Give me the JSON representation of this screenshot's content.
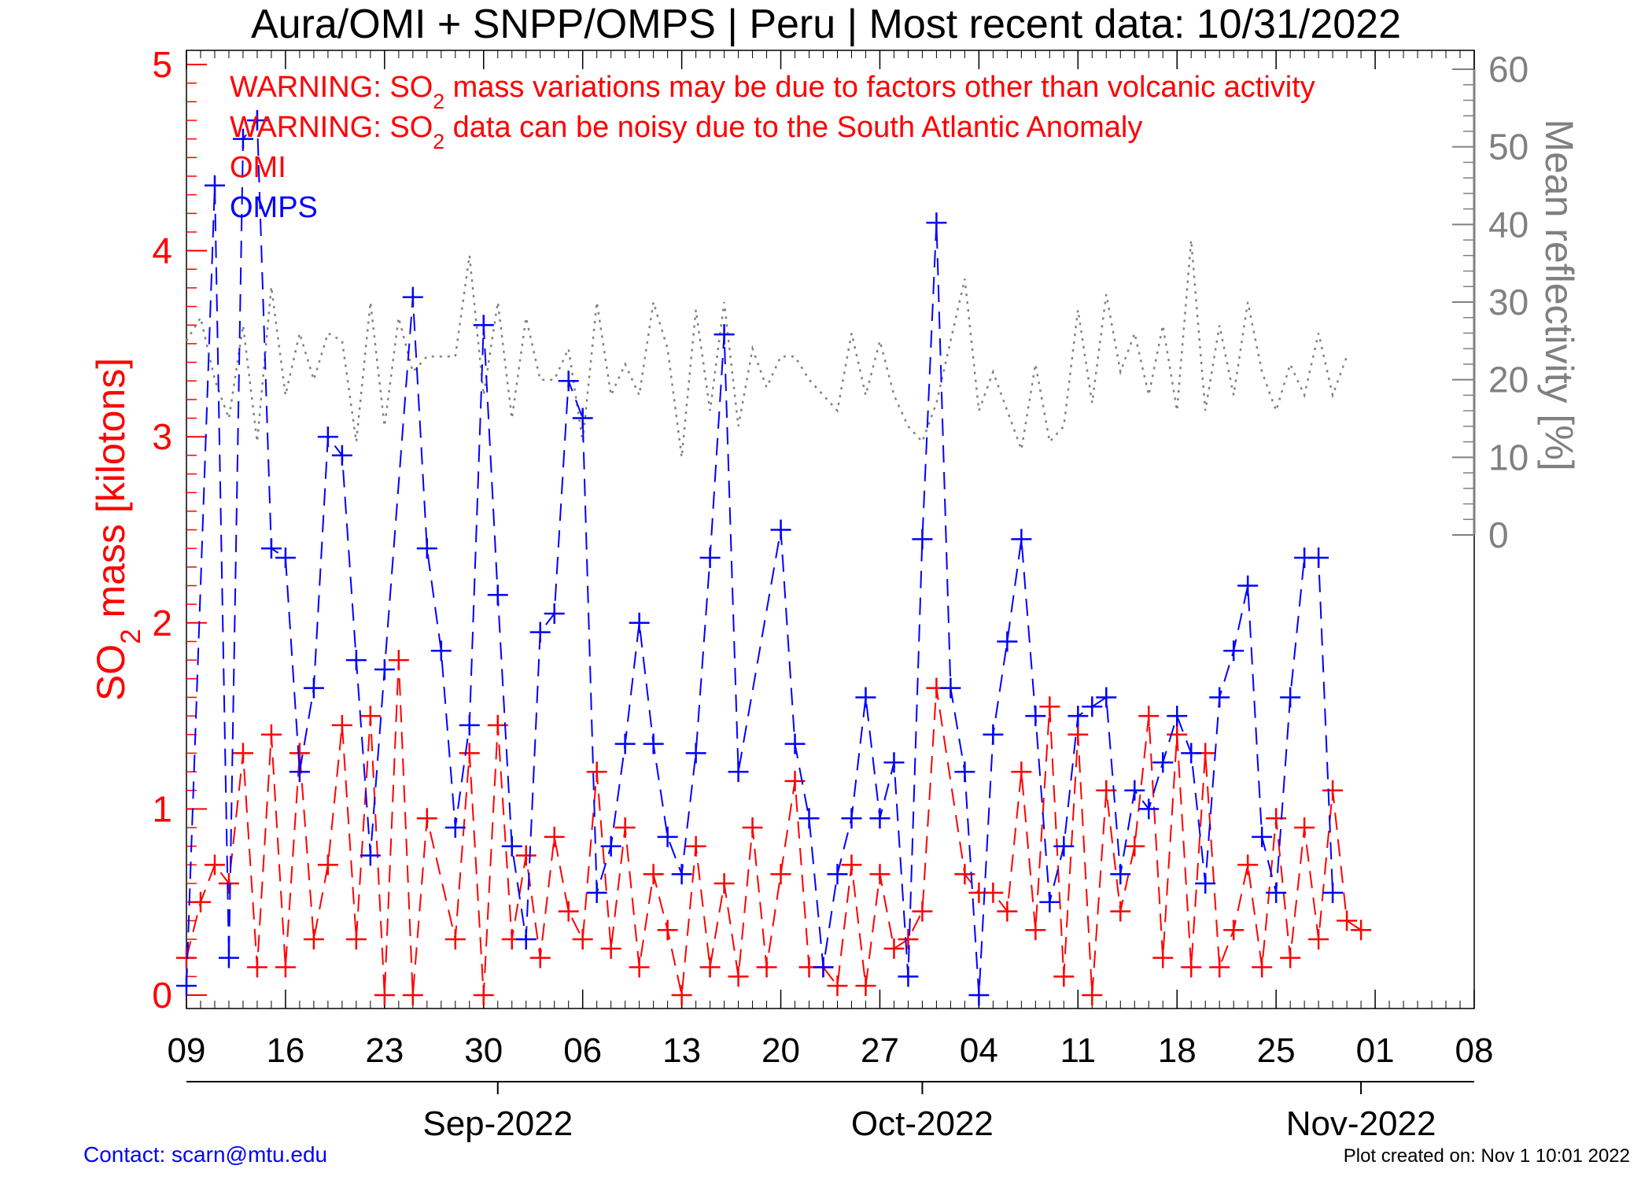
{
  "chart_data": {
    "type": "line",
    "title": "Aura/OMI + SNPP/OMPS | Peru | Most recent data: 10/31/2022",
    "warnings": [
      {
        "pre": "WARNING: SO",
        "sub": "2",
        "post": " mass variations may be due to factors other than volcanic activity"
      },
      {
        "pre": "WARNING: SO",
        "sub": "2",
        "post": " data can be noisy due to the South Atlantic Anomaly"
      }
    ],
    "ylabel_left": {
      "pre": "SO",
      "sub": "2",
      "post": " mass [kilotons]"
    },
    "ylabel_right": "Mean reflectivity [%]",
    "x_range": [
      "2022-08-09",
      "2022-11-08"
    ],
    "ylim_left": [
      0,
      5
    ],
    "ylim_right": [
      0,
      60
    ],
    "x_ticks": [
      {
        "date": "2022-08-09",
        "label": "09"
      },
      {
        "date": "2022-08-16",
        "label": "16"
      },
      {
        "date": "2022-08-23",
        "label": "23"
      },
      {
        "date": "2022-08-30",
        "label": "30"
      },
      {
        "date": "2022-09-06",
        "label": "06"
      },
      {
        "date": "2022-09-13",
        "label": "13"
      },
      {
        "date": "2022-09-20",
        "label": "20"
      },
      {
        "date": "2022-09-27",
        "label": "27"
      },
      {
        "date": "2022-10-04",
        "label": "04"
      },
      {
        "date": "2022-10-11",
        "label": "11"
      },
      {
        "date": "2022-10-18",
        "label": "18"
      },
      {
        "date": "2022-10-25",
        "label": "25"
      },
      {
        "date": "2022-11-01",
        "label": "01"
      },
      {
        "date": "2022-11-08",
        "label": "08"
      }
    ],
    "y_ticks_left": [
      0,
      1,
      2,
      3,
      4,
      5
    ],
    "y_ticks_right": [
      0,
      10,
      20,
      30,
      40,
      50,
      60
    ],
    "months": [
      {
        "date": "2022-08-31",
        "label": "Sep-2022"
      },
      {
        "date": "2022-09-30",
        "label": "Oct-2022"
      },
      {
        "date": "2022-10-31",
        "label": "Nov-2022"
      }
    ],
    "series": [
      {
        "name": "OMI",
        "axis": "left",
        "color": "#ff0000",
        "marker": "plus",
        "line": "dashed",
        "points": [
          [
            "2022-08-09",
            0.2
          ],
          [
            "2022-08-10",
            0.5
          ],
          [
            "2022-08-11",
            0.7
          ],
          [
            "2022-08-12",
            0.6
          ],
          [
            "2022-08-13",
            1.3
          ],
          [
            "2022-08-14",
            0.15
          ],
          [
            "2022-08-15",
            1.4
          ],
          [
            "2022-08-16",
            0.15
          ],
          [
            "2022-08-17",
            1.3
          ],
          [
            "2022-08-18",
            0.3
          ],
          [
            "2022-08-19",
            0.7
          ],
          [
            "2022-08-20",
            1.45
          ],
          [
            "2022-08-21",
            0.3
          ],
          [
            "2022-08-22",
            1.5
          ],
          [
            "2022-08-23",
            0.0
          ],
          [
            "2022-08-24",
            1.8
          ],
          [
            "2022-08-25",
            0.0
          ],
          [
            "2022-08-26",
            0.95
          ],
          [
            "2022-08-28",
            0.3
          ],
          [
            "2022-08-29",
            1.3
          ],
          [
            "2022-08-30",
            0.0
          ],
          [
            "2022-08-31",
            1.45
          ],
          [
            "2022-09-01",
            0.3
          ],
          [
            "2022-09-02",
            0.75
          ],
          [
            "2022-09-03",
            0.2
          ],
          [
            "2022-09-04",
            0.85
          ],
          [
            "2022-09-05",
            0.45
          ],
          [
            "2022-09-06",
            0.3
          ],
          [
            "2022-09-07",
            1.2
          ],
          [
            "2022-09-08",
            0.25
          ],
          [
            "2022-09-09",
            0.9
          ],
          [
            "2022-09-10",
            0.15
          ],
          [
            "2022-09-11",
            0.65
          ],
          [
            "2022-09-12",
            0.35
          ],
          [
            "2022-09-13",
            0.0
          ],
          [
            "2022-09-14",
            0.8
          ],
          [
            "2022-09-15",
            0.15
          ],
          [
            "2022-09-16",
            0.6
          ],
          [
            "2022-09-17",
            0.1
          ],
          [
            "2022-09-18",
            0.9
          ],
          [
            "2022-09-19",
            0.15
          ],
          [
            "2022-09-20",
            0.65
          ],
          [
            "2022-09-21",
            1.15
          ],
          [
            "2022-09-22",
            0.15
          ],
          [
            "2022-09-23",
            0.15
          ],
          [
            "2022-09-24",
            0.05
          ],
          [
            "2022-09-25",
            0.7
          ],
          [
            "2022-09-26",
            0.05
          ],
          [
            "2022-09-27",
            0.65
          ],
          [
            "2022-09-28",
            0.25
          ],
          [
            "2022-09-29",
            0.3
          ],
          [
            "2022-09-30",
            0.45
          ],
          [
            "2022-10-01",
            1.65
          ],
          [
            "2022-10-03",
            0.65
          ],
          [
            "2022-10-04",
            0.55
          ],
          [
            "2022-10-05",
            0.55
          ],
          [
            "2022-10-06",
            0.45
          ],
          [
            "2022-10-07",
            1.2
          ],
          [
            "2022-10-08",
            0.35
          ],
          [
            "2022-10-09",
            1.55
          ],
          [
            "2022-10-10",
            0.1
          ],
          [
            "2022-10-11",
            1.4
          ],
          [
            "2022-10-12",
            0.0
          ],
          [
            "2022-10-13",
            1.1
          ],
          [
            "2022-10-14",
            0.45
          ],
          [
            "2022-10-15",
            0.8
          ],
          [
            "2022-10-16",
            1.5
          ],
          [
            "2022-10-17",
            0.2
          ],
          [
            "2022-10-18",
            1.4
          ],
          [
            "2022-10-19",
            0.15
          ],
          [
            "2022-10-20",
            1.3
          ],
          [
            "2022-10-21",
            0.15
          ],
          [
            "2022-10-22",
            0.35
          ],
          [
            "2022-10-23",
            0.7
          ],
          [
            "2022-10-24",
            0.15
          ],
          [
            "2022-10-25",
            0.95
          ],
          [
            "2022-10-26",
            0.2
          ],
          [
            "2022-10-27",
            0.9
          ],
          [
            "2022-10-28",
            0.3
          ],
          [
            "2022-10-29",
            1.1
          ],
          [
            "2022-10-30",
            0.4
          ],
          [
            "2022-10-31",
            0.35
          ]
        ]
      },
      {
        "name": "OMPS",
        "axis": "left",
        "color": "#0000ff",
        "marker": "plus",
        "line": "dashed",
        "points": [
          [
            "2022-08-09",
            0.05
          ],
          [
            "2022-08-11",
            4.35
          ],
          [
            "2022-08-12",
            0.2
          ],
          [
            "2022-08-13",
            4.6
          ],
          [
            "2022-08-14",
            4.7
          ],
          [
            "2022-08-15",
            2.4
          ],
          [
            "2022-08-16",
            2.35
          ],
          [
            "2022-08-17",
            1.2
          ],
          [
            "2022-08-18",
            1.65
          ],
          [
            "2022-08-19",
            3.0
          ],
          [
            "2022-08-20",
            2.9
          ],
          [
            "2022-08-21",
            1.8
          ],
          [
            "2022-08-22",
            0.75
          ],
          [
            "2022-08-23",
            1.75
          ],
          [
            "2022-08-25",
            3.75
          ],
          [
            "2022-08-26",
            2.4
          ],
          [
            "2022-08-27",
            1.85
          ],
          [
            "2022-08-28",
            0.9
          ],
          [
            "2022-08-29",
            1.45
          ],
          [
            "2022-08-30",
            3.6
          ],
          [
            "2022-08-31",
            2.15
          ],
          [
            "2022-09-01",
            0.8
          ],
          [
            "2022-09-02",
            0.3
          ],
          [
            "2022-09-03",
            1.95
          ],
          [
            "2022-09-04",
            2.05
          ],
          [
            "2022-09-05",
            3.3
          ],
          [
            "2022-09-06",
            3.1
          ],
          [
            "2022-09-07",
            0.55
          ],
          [
            "2022-09-08",
            0.8
          ],
          [
            "2022-09-09",
            1.35
          ],
          [
            "2022-09-10",
            2.0
          ],
          [
            "2022-09-11",
            1.35
          ],
          [
            "2022-09-12",
            0.85
          ],
          [
            "2022-09-13",
            0.65
          ],
          [
            "2022-09-14",
            1.3
          ],
          [
            "2022-09-15",
            2.35
          ],
          [
            "2022-09-16",
            3.55
          ],
          [
            "2022-09-17",
            1.2
          ],
          [
            "2022-09-20",
            2.5
          ],
          [
            "2022-09-21",
            1.35
          ],
          [
            "2022-09-22",
            0.95
          ],
          [
            "2022-09-23",
            0.15
          ],
          [
            "2022-09-24",
            0.65
          ],
          [
            "2022-09-25",
            0.95
          ],
          [
            "2022-09-26",
            1.6
          ],
          [
            "2022-09-27",
            0.95
          ],
          [
            "2022-09-28",
            1.25
          ],
          [
            "2022-09-29",
            0.1
          ],
          [
            "2022-09-30",
            2.45
          ],
          [
            "2022-10-01",
            4.15
          ],
          [
            "2022-10-02",
            1.65
          ],
          [
            "2022-10-03",
            1.2
          ],
          [
            "2022-10-04",
            0.0
          ],
          [
            "2022-10-05",
            1.4
          ],
          [
            "2022-10-06",
            1.9
          ],
          [
            "2022-10-07",
            2.45
          ],
          [
            "2022-10-08",
            1.5
          ],
          [
            "2022-10-09",
            0.5
          ],
          [
            "2022-10-10",
            0.8
          ],
          [
            "2022-10-11",
            1.5
          ],
          [
            "2022-10-12",
            1.55
          ],
          [
            "2022-10-13",
            1.6
          ],
          [
            "2022-10-14",
            0.65
          ],
          [
            "2022-10-15",
            1.1
          ],
          [
            "2022-10-16",
            1.0
          ],
          [
            "2022-10-17",
            1.25
          ],
          [
            "2022-10-18",
            1.5
          ],
          [
            "2022-10-19",
            1.3
          ],
          [
            "2022-10-20",
            0.6
          ],
          [
            "2022-10-21",
            1.6
          ],
          [
            "2022-10-22",
            1.85
          ],
          [
            "2022-10-23",
            2.2
          ],
          [
            "2022-10-24",
            0.85
          ],
          [
            "2022-10-25",
            0.55
          ],
          [
            "2022-10-26",
            1.6
          ],
          [
            "2022-10-27",
            2.35
          ],
          [
            "2022-10-28",
            2.35
          ],
          [
            "2022-10-29",
            0.55
          ]
        ]
      },
      {
        "axis": "right",
        "color": "#808080",
        "marker": "none",
        "line": "dotted",
        "points": [
          [
            "2022-08-09",
            25
          ],
          [
            "2022-08-10",
            28
          ],
          [
            "2022-08-11",
            20
          ],
          [
            "2022-08-12",
            15
          ],
          [
            "2022-08-13",
            27
          ],
          [
            "2022-08-14",
            12
          ],
          [
            "2022-08-15",
            32
          ],
          [
            "2022-08-16",
            18
          ],
          [
            "2022-08-17",
            26
          ],
          [
            "2022-08-18",
            20
          ],
          [
            "2022-08-19",
            26
          ],
          [
            "2022-08-20",
            25
          ],
          [
            "2022-08-21",
            12
          ],
          [
            "2022-08-22",
            30
          ],
          [
            "2022-08-23",
            14
          ],
          [
            "2022-08-24",
            28
          ],
          [
            "2022-08-25",
            21
          ],
          [
            "2022-08-26",
            23
          ],
          [
            "2022-08-27",
            23
          ],
          [
            "2022-08-28",
            23
          ],
          [
            "2022-08-29",
            36
          ],
          [
            "2022-08-30",
            18
          ],
          [
            "2022-08-31",
            30
          ],
          [
            "2022-09-01",
            15
          ],
          [
            "2022-09-02",
            28
          ],
          [
            "2022-09-03",
            20
          ],
          [
            "2022-09-04",
            20
          ],
          [
            "2022-09-05",
            24
          ],
          [
            "2022-09-06",
            12
          ],
          [
            "2022-09-07",
            30
          ],
          [
            "2022-09-08",
            18
          ],
          [
            "2022-09-09",
            22
          ],
          [
            "2022-09-10",
            18
          ],
          [
            "2022-09-11",
            30
          ],
          [
            "2022-09-12",
            24
          ],
          [
            "2022-09-13",
            10
          ],
          [
            "2022-09-14",
            29
          ],
          [
            "2022-09-15",
            16
          ],
          [
            "2022-09-16",
            30
          ],
          [
            "2022-09-17",
            14
          ],
          [
            "2022-09-18",
            24
          ],
          [
            "2022-09-19",
            19
          ],
          [
            "2022-09-20",
            23
          ],
          [
            "2022-09-21",
            23
          ],
          [
            "2022-09-22",
            20
          ],
          [
            "2022-09-23",
            18
          ],
          [
            "2022-09-24",
            16
          ],
          [
            "2022-09-25",
            26
          ],
          [
            "2022-09-26",
            18
          ],
          [
            "2022-09-27",
            25
          ],
          [
            "2022-09-28",
            18
          ],
          [
            "2022-09-29",
            14
          ],
          [
            "2022-09-30",
            12
          ],
          [
            "2022-10-01",
            17
          ],
          [
            "2022-10-03",
            33
          ],
          [
            "2022-10-04",
            16
          ],
          [
            "2022-10-05",
            21
          ],
          [
            "2022-10-06",
            16
          ],
          [
            "2022-10-07",
            11
          ],
          [
            "2022-10-08",
            22
          ],
          [
            "2022-10-09",
            12
          ],
          [
            "2022-10-10",
            14
          ],
          [
            "2022-10-11",
            29
          ],
          [
            "2022-10-12",
            17
          ],
          [
            "2022-10-13",
            31
          ],
          [
            "2022-10-14",
            21
          ],
          [
            "2022-10-15",
            26
          ],
          [
            "2022-10-16",
            18
          ],
          [
            "2022-10-17",
            27
          ],
          [
            "2022-10-18",
            16
          ],
          [
            "2022-10-19",
            38
          ],
          [
            "2022-10-20",
            16
          ],
          [
            "2022-10-21",
            27
          ],
          [
            "2022-10-22",
            18
          ],
          [
            "2022-10-23",
            30
          ],
          [
            "2022-10-24",
            21
          ],
          [
            "2022-10-25",
            16
          ],
          [
            "2022-10-26",
            22
          ],
          [
            "2022-10-27",
            18
          ],
          [
            "2022-10-28",
            26
          ],
          [
            "2022-10-29",
            18
          ],
          [
            "2022-10-30",
            23
          ]
        ]
      }
    ]
  },
  "footer": {
    "contact": "Contact: scarn@mtu.edu",
    "created": "Plot created on: Nov  1 10:01 2022"
  }
}
